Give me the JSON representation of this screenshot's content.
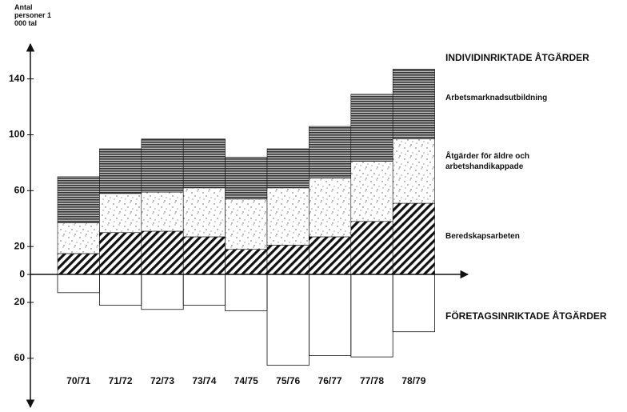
{
  "chart_data": {
    "type": "bar",
    "stacked": true,
    "y_label": "Antal personer 1 000 tal",
    "header": "INDIVIDINRIKTADE ÅTGÄRDER",
    "categories": [
      "70/71",
      "71/72",
      "72/73",
      "73/74",
      "74/75",
      "75/76",
      "76/77",
      "77/78",
      "78/79"
    ],
    "series": [
      {
        "name": "Beredskapsarbeten",
        "color": "#111111",
        "pattern": "hatch",
        "values": [
          15,
          30,
          31,
          27,
          18,
          21,
          27,
          38,
          51
        ]
      },
      {
        "name": "Åtgärder för äldre och arbetshandikappade",
        "color": "#111111",
        "pattern": "dots",
        "values": [
          22,
          28,
          28,
          35,
          36,
          41,
          42,
          43,
          46
        ]
      },
      {
        "name": "Arbetsmarknadsutbildning",
        "color": "#111111",
        "pattern": "lines",
        "values": [
          33,
          32,
          38,
          35,
          30,
          28,
          37,
          48,
          50
        ]
      },
      {
        "name": "FÖRETAGSINRIKTADE ÅTGÄRDER",
        "color": "#111111",
        "pattern": "none",
        "values": [
          -13,
          -22,
          -25,
          -22,
          -26,
          -65,
          -58,
          -59,
          -41
        ]
      }
    ],
    "ylim": [
      -95,
      165
    ],
    "yticks": [
      {
        "value": -60,
        "label": "60"
      },
      {
        "value": -20,
        "label": "20"
      },
      0,
      20,
      60,
      100,
      140
    ]
  }
}
